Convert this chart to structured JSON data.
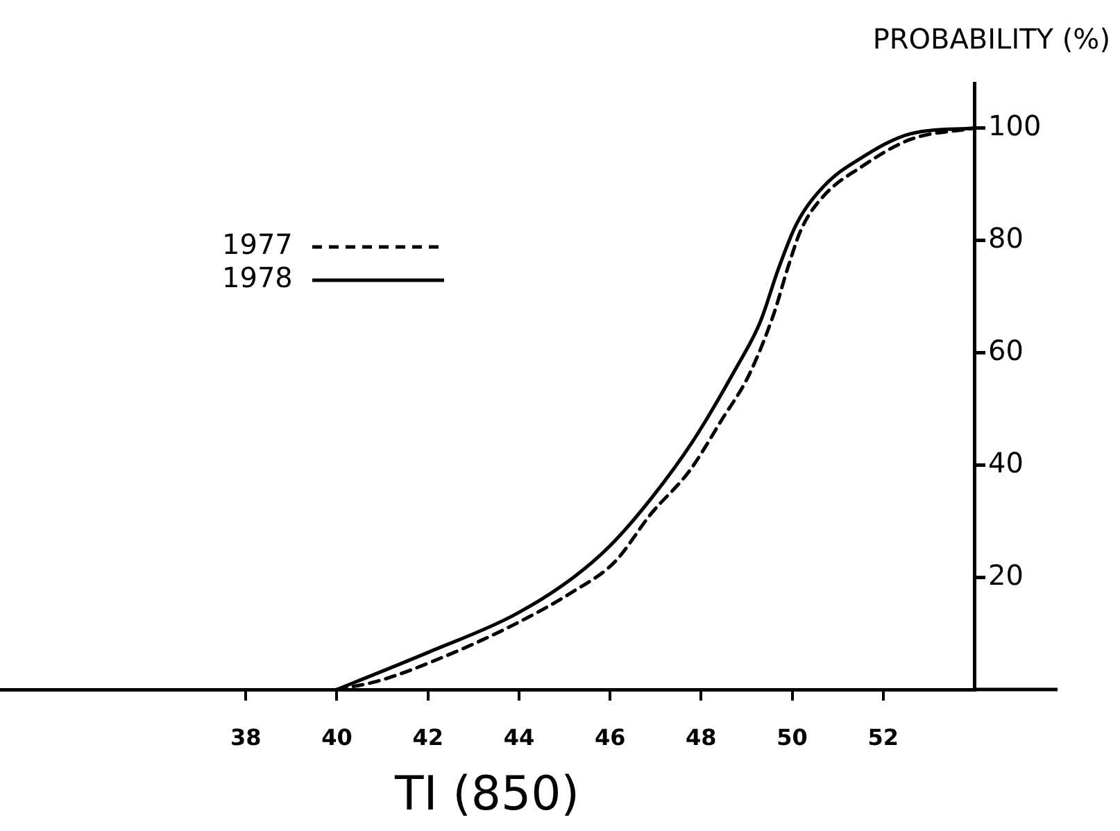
{
  "chart_data": {
    "type": "line",
    "ylabel": "PROBABILITY (%)",
    "xlabel": "TI (850)",
    "xlim": [
      32.6,
      54
    ],
    "xticks": [
      38,
      40,
      42,
      44,
      46,
      48,
      50,
      52
    ],
    "ylim": [
      0,
      108
    ],
    "yticks": [
      20,
      40,
      60,
      80,
      100
    ],
    "grid": false,
    "legend": "top left",
    "marker": "none",
    "series": [
      {
        "name": "1977",
        "color": "#000000",
        "line_style": "dashed",
        "x": [
          40,
          40.9,
          42.1,
          43.9,
          45.2,
          46.1,
          46.9,
          47.75,
          48.45,
          49.05,
          49.6,
          49.9,
          50.2,
          50.7,
          51.5,
          52.6,
          54
        ],
        "values": [
          0,
          1.5,
          5,
          11.6,
          17.5,
          22.7,
          31.3,
          39,
          48,
          56,
          67,
          75,
          82,
          88,
          93,
          98,
          100
        ]
      },
      {
        "name": "1978",
        "color": "#000000",
        "line_style": "solid",
        "x": [
          40,
          42,
          43.9,
          45.2,
          46,
          46.9,
          47.8,
          48.75,
          49.3,
          49.7,
          50.1,
          50.7,
          51.5,
          52.6,
          54
        ],
        "values": [
          0,
          6.6,
          13.3,
          20,
          25.6,
          34,
          44,
          57,
          65.5,
          75,
          83,
          89.7,
          94.6,
          99,
          100
        ]
      }
    ]
  }
}
